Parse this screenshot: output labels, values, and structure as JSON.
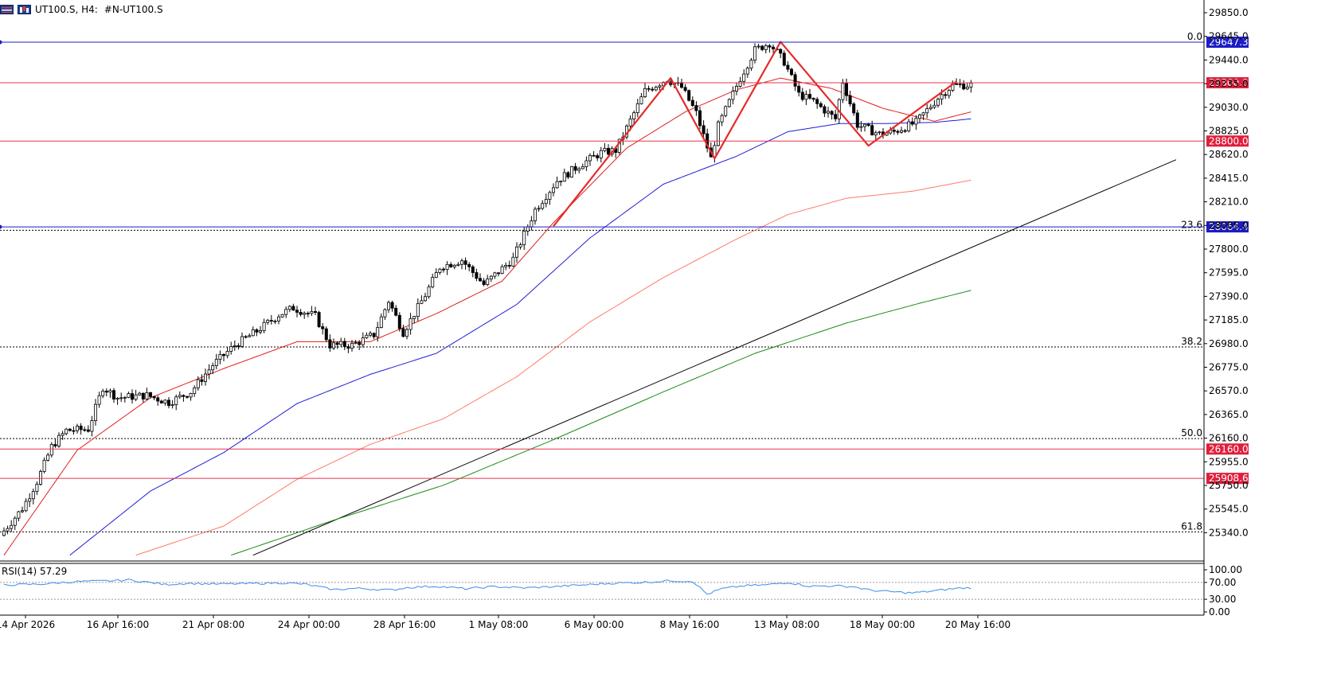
{
  "header": {
    "symbol_text": "UT100.S, H4:",
    "description_text": "#N-UT100.S"
  },
  "colors": {
    "background": "#ffffff",
    "bull_body": "#ffffff",
    "bear_body": "#000000",
    "wick": "#000000",
    "ma_fast": "#e21d1d",
    "ma_mid": "#1f1fd6",
    "ma_slow": "#ff7a6a",
    "ma_long": "#1a8a1a",
    "trendline": "#000000",
    "zigzag": "#e52a2a",
    "hline_red": "#e8334a",
    "hline_blue": "#1c1cc4",
    "fib_dash": "#000000",
    "rsi_line": "#3a8ee6",
    "label_blue_bg": "#1c1cc4",
    "label_red_bg": "#e01e3c"
  },
  "price_axis": {
    "ticks": [
      "29850.0",
      "29645.0",
      "29440.0",
      "29235.0",
      "29030.0",
      "28825.0",
      "28620.0",
      "28415.0",
      "28210.0",
      "28005.0",
      "27800.0",
      "27595.0",
      "27390.0",
      "27185.0",
      "26980.0",
      "26775.0",
      "26570.0",
      "26365.0",
      "26160.0",
      "25955.0",
      "25750.0",
      "25545.0",
      "25340.0"
    ]
  },
  "time_axis": {
    "labels": [
      "14 Apr 2026",
      "16 Apr 16:00",
      "21 Apr 08:00",
      "24 Apr 00:00",
      "28 Apr 16:00",
      "1 May 08:00",
      "6 May 00:00",
      "8 May 16:00",
      "13 May 08:00",
      "18 May 00:00",
      "20 May 16:00"
    ]
  },
  "horizontal_lines": [
    {
      "price": 29647.3,
      "label": "29647.3",
      "color": "blue",
      "style": "solid"
    },
    {
      "price": 29300.0,
      "label": "29300.0",
      "color": "red",
      "style": "solid"
    },
    {
      "price": 28800.0,
      "label": "28800.0",
      "color": "red",
      "style": "solid"
    },
    {
      "price": 28064.4,
      "label": "28064.4",
      "color": "blue",
      "style": "solid"
    },
    {
      "price": 26160.0,
      "label": "26160.0",
      "color": "red",
      "style": "solid"
    },
    {
      "price": 25908.6,
      "label": "25908.6",
      "color": "red",
      "style": "solid"
    }
  ],
  "fibonacci": [
    {
      "level": "0.0",
      "price": 29647.3
    },
    {
      "level": "23.6",
      "price": 28035
    },
    {
      "level": "38.2",
      "price": 27035
    },
    {
      "level": "50.0",
      "price": 26250
    },
    {
      "level": "61.8",
      "price": 25450
    }
  ],
  "rsi": {
    "label": "RSI(14) 57.29",
    "ticks": [
      "100.00",
      "70.00",
      "30.00",
      "0.00"
    ],
    "levels": [
      70,
      30
    ]
  },
  "chart_data": {
    "type": "candlestick",
    "symbol": "UT100.S",
    "timeframe": "H4",
    "ylim": [
      25200,
      29900
    ],
    "grid": false,
    "anchors": [
      [
        0,
        25420
      ],
      [
        6,
        25650
      ],
      [
        10,
        25880
      ],
      [
        14,
        26180
      ],
      [
        18,
        26320
      ],
      [
        24,
        26330
      ],
      [
        28,
        26690
      ],
      [
        32,
        26600
      ],
      [
        40,
        26620
      ],
      [
        46,
        26560
      ],
      [
        52,
        26650
      ],
      [
        58,
        26880
      ],
      [
        64,
        27050
      ],
      [
        70,
        27170
      ],
      [
        76,
        27310
      ],
      [
        80,
        27370
      ],
      [
        86,
        27300
      ],
      [
        90,
        27050
      ],
      [
        96,
        27050
      ],
      [
        102,
        27140
      ],
      [
        106,
        27430
      ],
      [
        110,
        27160
      ],
      [
        116,
        27480
      ],
      [
        120,
        27720
      ],
      [
        126,
        27780
      ],
      [
        132,
        27570
      ],
      [
        140,
        27790
      ],
      [
        146,
        28210
      ],
      [
        152,
        28460
      ],
      [
        158,
        28590
      ],
      [
        164,
        28700
      ],
      [
        168,
        28720
      ],
      [
        176,
        29230
      ],
      [
        182,
        29330
      ],
      [
        186,
        29260
      ],
      [
        190,
        29040
      ],
      [
        194,
        28650
      ],
      [
        196,
        28930
      ],
      [
        202,
        29340
      ],
      [
        206,
        29580
      ],
      [
        210,
        29640
      ],
      [
        214,
        29480
      ],
      [
        218,
        29200
      ],
      [
        222,
        29140
      ],
      [
        228,
        28990
      ],
      [
        230,
        29310
      ],
      [
        234,
        28940
      ],
      [
        240,
        28860
      ],
      [
        244,
        28880
      ],
      [
        250,
        28960
      ],
      [
        256,
        29170
      ],
      [
        260,
        29280
      ],
      [
        264,
        29280
      ]
    ],
    "ma": [
      {
        "name": "ma_fast",
        "points": [
          [
            0,
            25250
          ],
          [
            20,
            26150
          ],
          [
            40,
            26600
          ],
          [
            60,
            26850
          ],
          [
            80,
            27080
          ],
          [
            100,
            27080
          ],
          [
            118,
            27320
          ],
          [
            136,
            27600
          ],
          [
            150,
            28100
          ],
          [
            170,
            28740
          ],
          [
            186,
            29050
          ],
          [
            200,
            29240
          ],
          [
            212,
            29340
          ],
          [
            226,
            29250
          ],
          [
            240,
            29080
          ],
          [
            254,
            28970
          ],
          [
            264,
            29050
          ]
        ]
      },
      {
        "name": "ma_mid",
        "points": [
          [
            18,
            25250
          ],
          [
            40,
            25800
          ],
          [
            60,
            26130
          ],
          [
            80,
            26550
          ],
          [
            100,
            26800
          ],
          [
            118,
            26980
          ],
          [
            140,
            27400
          ],
          [
            160,
            27970
          ],
          [
            180,
            28430
          ],
          [
            200,
            28670
          ],
          [
            214,
            28880
          ],
          [
            228,
            28950
          ],
          [
            240,
            28950
          ],
          [
            254,
            28960
          ],
          [
            264,
            28990
          ]
        ]
      },
      {
        "name": "ma_slow",
        "points": [
          [
            36,
            25250
          ],
          [
            60,
            25500
          ],
          [
            80,
            25900
          ],
          [
            100,
            26200
          ],
          [
            120,
            26420
          ],
          [
            140,
            26780
          ],
          [
            160,
            27250
          ],
          [
            180,
            27630
          ],
          [
            200,
            27960
          ],
          [
            214,
            28170
          ],
          [
            230,
            28310
          ],
          [
            248,
            28370
          ],
          [
            264,
            28465
          ]
        ]
      },
      {
        "name": "ma_long",
        "points": [
          [
            62,
            25250
          ],
          [
            90,
            25550
          ],
          [
            120,
            25850
          ],
          [
            150,
            26240
          ],
          [
            180,
            26650
          ],
          [
            205,
            26980
          ],
          [
            230,
            27240
          ],
          [
            250,
            27410
          ],
          [
            264,
            27520
          ]
        ]
      }
    ],
    "trendline": [
      [
        68,
        25250
      ],
      [
        320,
        28640
      ]
    ],
    "zigzag": [
      [
        150,
        28070
      ],
      [
        182,
        29340
      ],
      [
        194,
        28650
      ],
      [
        212,
        29650
      ],
      [
        236,
        28760
      ],
      [
        260,
        29310
      ]
    ],
    "rsi_values": [
      [
        0,
        64
      ],
      [
        10,
        66
      ],
      [
        20,
        72
      ],
      [
        30,
        74
      ],
      [
        34,
        76
      ],
      [
        38,
        72
      ],
      [
        44,
        65
      ],
      [
        50,
        68
      ],
      [
        58,
        66
      ],
      [
        66,
        67
      ],
      [
        76,
        69
      ],
      [
        82,
        66
      ],
      [
        90,
        53
      ],
      [
        96,
        56
      ],
      [
        106,
        52
      ],
      [
        110,
        58
      ],
      [
        118,
        61
      ],
      [
        126,
        55
      ],
      [
        134,
        60
      ],
      [
        142,
        57
      ],
      [
        150,
        60
      ],
      [
        158,
        64
      ],
      [
        166,
        68
      ],
      [
        174,
        70
      ],
      [
        182,
        74
      ],
      [
        188,
        73
      ],
      [
        192,
        42
      ],
      [
        196,
        55
      ],
      [
        202,
        62
      ],
      [
        208,
        64
      ],
      [
        214,
        70
      ],
      [
        220,
        61
      ],
      [
        226,
        62
      ],
      [
        232,
        60
      ],
      [
        236,
        52
      ],
      [
        242,
        48
      ],
      [
        248,
        45
      ],
      [
        254,
        50
      ],
      [
        260,
        56
      ],
      [
        264,
        57.29
      ]
    ]
  }
}
